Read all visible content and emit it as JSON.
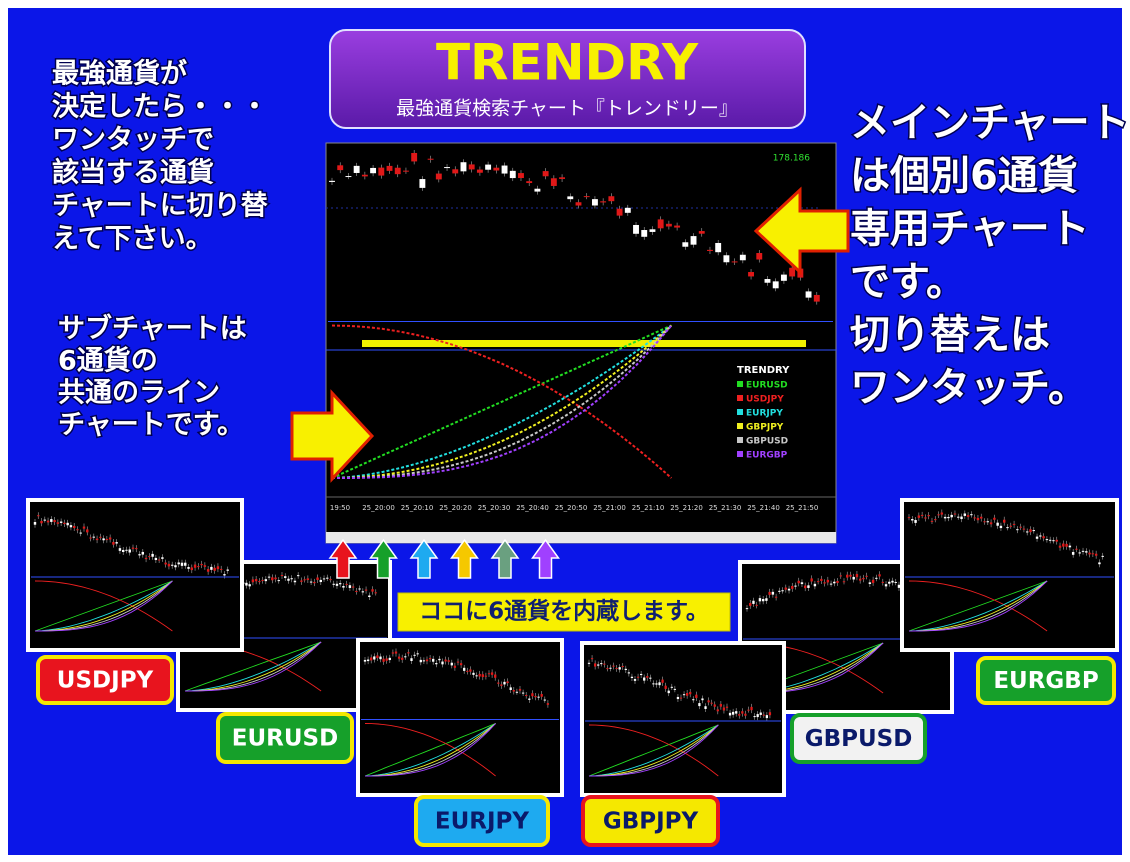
{
  "left_note": {
    "lines": [
      "最強通貨が",
      "決定したら・・・",
      "ワンタッチで",
      "該当する通貨",
      "チャートに切り替",
      "えて下さい。"
    ]
  },
  "sub_note": {
    "lines": [
      "サブチャートは",
      "6通貨の",
      "共通のライン",
      "チャートです。"
    ]
  },
  "title": {
    "main": "TRENDRY",
    "subtitle": "最強通貨検索チャート『トレンドリー』"
  },
  "right_note": {
    "lines": [
      "メインチャート",
      "は個別6通貨",
      "専用チャート",
      "です。",
      "切り替えは",
      "ワンタッチ。"
    ]
  },
  "main_chart": {
    "price_label": "178.186",
    "legend": {
      "title": "TRENDRY",
      "items": [
        {
          "name": "EURUSD",
          "color": "#22dd22"
        },
        {
          "name": "USDJPY",
          "color": "#ee2020"
        },
        {
          "name": "EURJPY",
          "color": "#22e0e0"
        },
        {
          "name": "GBPJPY",
          "color": "#f0f020"
        },
        {
          "name": "GBPUSD",
          "color": "#c8c8c8"
        },
        {
          "name": "EURGBP",
          "color": "#a040ff"
        }
      ]
    },
    "time_labels": [
      "19:50",
      "25_20:00",
      "25_20:10",
      "25_20:20",
      "25_20:30",
      "25_20:40",
      "25_20:50",
      "25_21:00",
      "25_21:10",
      "25_21:20",
      "25_21:30",
      "25_21:40",
      "25_21:50"
    ]
  },
  "banner": "ココに6通貨を内蔵します。",
  "pairs": [
    {
      "label": "USDJPY",
      "fill": "#e8141e",
      "border": "#f5e800",
      "text": "#ffffff"
    },
    {
      "label": "EURUSD",
      "fill": "#16a02a",
      "border": "#f5e800",
      "text": "#ffffff"
    },
    {
      "label": "EURJPY",
      "fill": "#1eaaf0",
      "border": "#f5e800",
      "text": "#0a1a6a"
    },
    {
      "label": "GBPJPY",
      "fill": "#f5e800",
      "border": "#e8141e",
      "text": "#0a1a6a"
    },
    {
      "label": "GBPUSD",
      "fill": "#f2f2f2",
      "border": "#16a02a",
      "text": "#0a1a6a"
    },
    {
      "label": "EURGBP",
      "fill": "#16a02a",
      "border": "#f5e800",
      "text": "#ffffff"
    }
  ]
}
